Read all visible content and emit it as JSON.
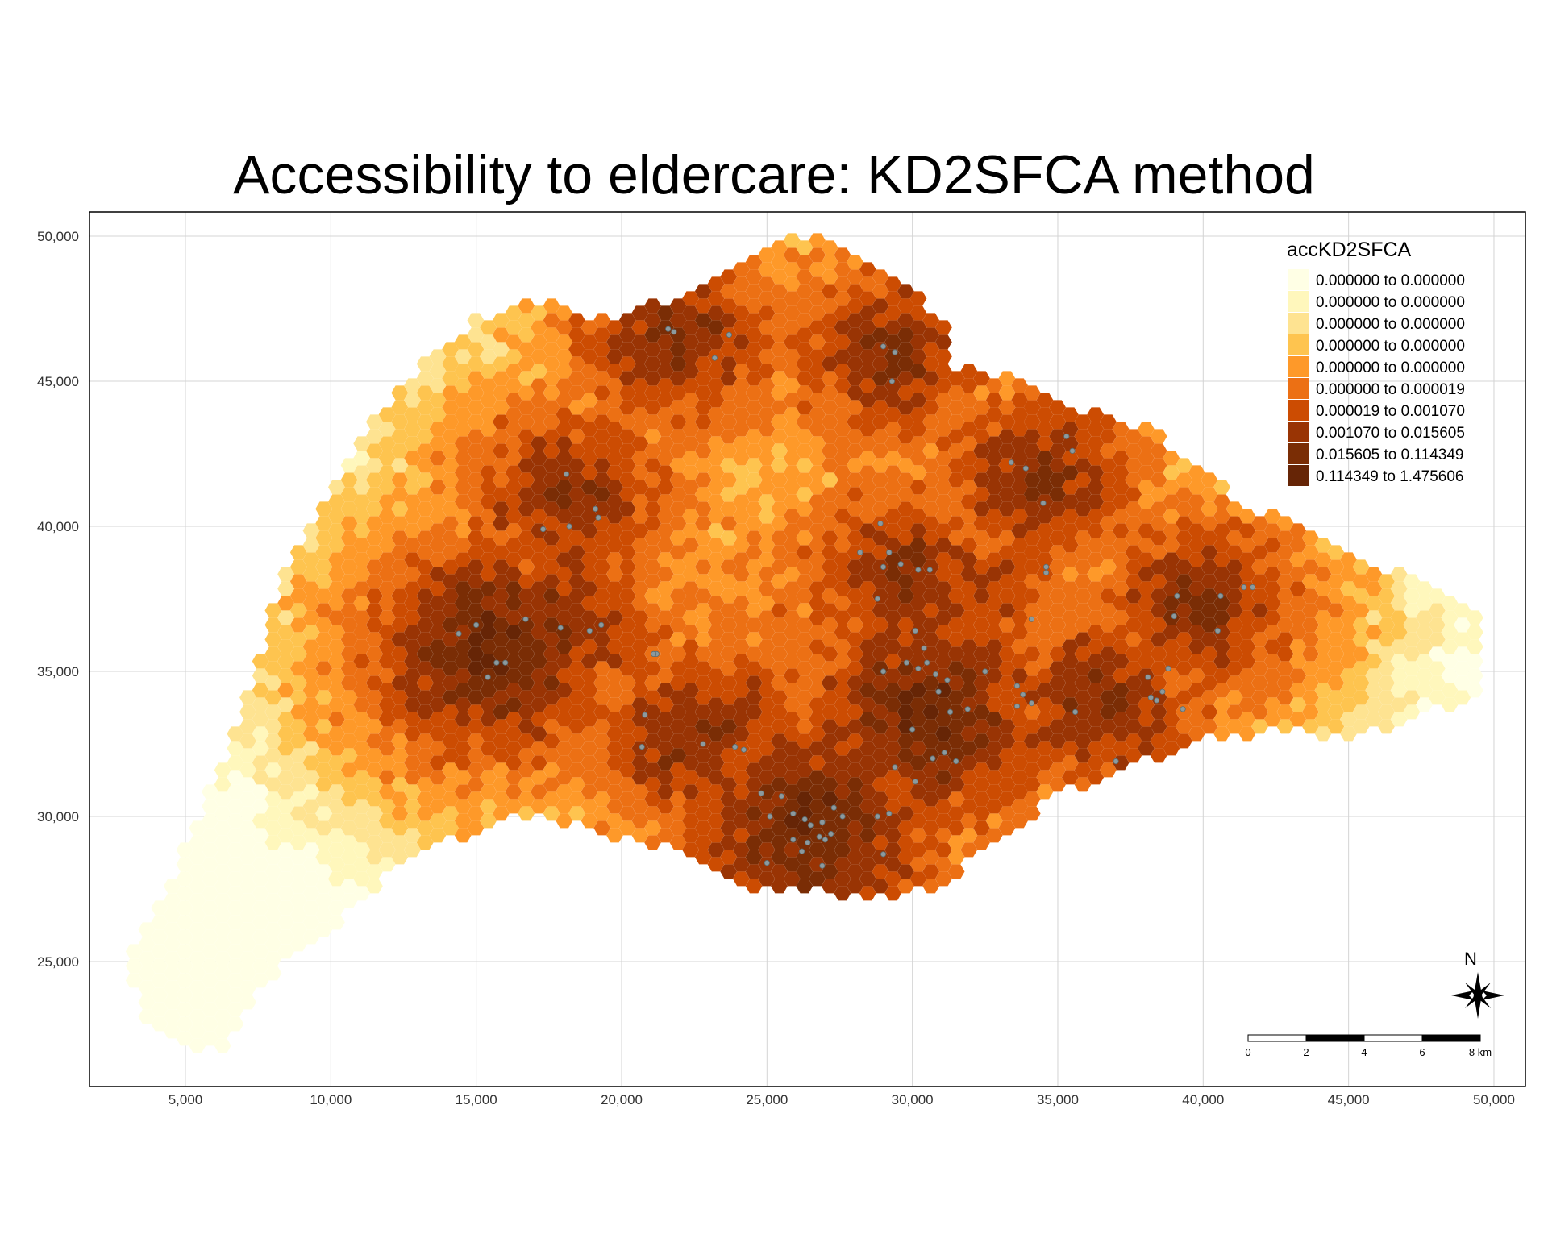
{
  "title": "Accessibility to eldercare: KD2SFCA method",
  "chart_data": {
    "type": "heatmap",
    "map_type": "hexagon choropleth",
    "variable": "accKD2SFCA",
    "xlim": [
      2000,
      51000
    ],
    "ylim": [
      21000,
      51000
    ],
    "grid": true,
    "x_ticks": [
      5000,
      10000,
      15000,
      20000,
      25000,
      30000,
      35000,
      40000,
      45000,
      50000
    ],
    "y_ticks": [
      25000,
      30000,
      35000,
      40000,
      45000,
      50000
    ],
    "x_tick_labels": [
      "5,000",
      "10,000",
      "15,000",
      "20,000",
      "25,000",
      "30,000",
      "35,000",
      "40,000",
      "45,000",
      "50,000"
    ],
    "y_tick_labels": [
      "25,000",
      "30,000",
      "35,000",
      "40,000",
      "45,000",
      "50,000"
    ],
    "legend": {
      "title": "accKD2SFCA",
      "placement": "top-right",
      "classes": [
        {
          "label": "0.000000 to 0.000000",
          "color": "#ffffe5"
        },
        {
          "label": "0.000000 to 0.000000",
          "color": "#fff7bc"
        },
        {
          "label": "0.000000 to 0.000000",
          "color": "#fee391"
        },
        {
          "label": "0.000000 to 0.000000",
          "color": "#fec44f"
        },
        {
          "label": "0.000000 to 0.000000",
          "color": "#fe9929"
        },
        {
          "label": "0.000000 to 0.000019",
          "color": "#ec7014"
        },
        {
          "label": "0.000019 to 0.001070",
          "color": "#cc4c02"
        },
        {
          "label": "0.001070 to 0.015605",
          "color": "#993404"
        },
        {
          "label": "0.015605 to 0.114349",
          "color": "#7a2d05"
        },
        {
          "label": "0.114349 to 1.475606",
          "color": "#662506"
        }
      ]
    },
    "hotspots": [
      {
        "x": 22000,
        "y": 46500,
        "cls": 8
      },
      {
        "x": 29300,
        "y": 46000,
        "cls": 8
      },
      {
        "x": 18200,
        "y": 41000,
        "cls": 8
      },
      {
        "x": 15500,
        "y": 35800,
        "cls": 9
      },
      {
        "x": 17500,
        "y": 36700,
        "cls": 8
      },
      {
        "x": 29700,
        "y": 38200,
        "cls": 8
      },
      {
        "x": 30600,
        "y": 33500,
        "cls": 9
      },
      {
        "x": 26500,
        "y": 29700,
        "cls": 9
      },
      {
        "x": 34300,
        "y": 41700,
        "cls": 8
      },
      {
        "x": 39800,
        "y": 37200,
        "cls": 8
      },
      {
        "x": 36500,
        "y": 34000,
        "cls": 8
      },
      {
        "x": 22500,
        "y": 32700,
        "cls": 8
      },
      {
        "x": 19500,
        "y": 36000,
        "cls": 7
      },
      {
        "x": 24000,
        "y": 33500,
        "cls": 7
      },
      {
        "x": 32500,
        "y": 38000,
        "cls": 7
      }
    ],
    "facilities": [
      [
        21600,
        46800
      ],
      [
        21800,
        46700
      ],
      [
        23200,
        45800
      ],
      [
        23700,
        46600
      ],
      [
        29000,
        46200
      ],
      [
        29400,
        46000
      ],
      [
        29300,
        45000
      ],
      [
        18100,
        41800
      ],
      [
        18200,
        40000
      ],
      [
        19200,
        40300
      ],
      [
        19100,
        40600
      ],
      [
        17300,
        39900
      ],
      [
        14400,
        36300
      ],
      [
        15000,
        36600
      ],
      [
        15700,
        35300
      ],
      [
        16000,
        35300
      ],
      [
        15400,
        34800
      ],
      [
        16700,
        36800
      ],
      [
        17900,
        36500
      ],
      [
        18900,
        36400
      ],
      [
        19300,
        36600
      ],
      [
        21200,
        35600
      ],
      [
        28900,
        40100
      ],
      [
        29200,
        39100
      ],
      [
        28200,
        39100
      ],
      [
        29000,
        38600
      ],
      [
        29600,
        38700
      ],
      [
        30200,
        38500
      ],
      [
        30600,
        38500
      ],
      [
        28800,
        37500
      ],
      [
        30100,
        36400
      ],
      [
        30400,
        35800
      ],
      [
        30500,
        35300
      ],
      [
        29800,
        35300
      ],
      [
        30200,
        35100
      ],
      [
        30800,
        34900
      ],
      [
        31200,
        34700
      ],
      [
        29000,
        35000
      ],
      [
        30900,
        34300
      ],
      [
        31300,
        33600
      ],
      [
        31900,
        33700
      ],
      [
        32500,
        35000
      ],
      [
        30000,
        33000
      ],
      [
        30700,
        32000
      ],
      [
        31100,
        32200
      ],
      [
        29400,
        31700
      ],
      [
        30100,
        31200
      ],
      [
        31500,
        31900
      ],
      [
        24800,
        30800
      ],
      [
        25500,
        30700
      ],
      [
        25100,
        30000
      ],
      [
        25900,
        30100
      ],
      [
        26300,
        29900
      ],
      [
        26500,
        29700
      ],
      [
        26900,
        29800
      ],
      [
        27300,
        30300
      ],
      [
        27600,
        30000
      ],
      [
        28800,
        30000
      ],
      [
        29200,
        30100
      ],
      [
        26400,
        29100
      ],
      [
        26800,
        29300
      ],
      [
        27000,
        29200
      ],
      [
        27200,
        29400
      ],
      [
        25900,
        29200
      ],
      [
        26200,
        28800
      ],
      [
        25000,
        28400
      ],
      [
        29000,
        28700
      ],
      [
        26900,
        28300
      ],
      [
        20800,
        33500
      ],
      [
        20700,
        32400
      ],
      [
        22800,
        32500
      ],
      [
        23900,
        32400
      ],
      [
        24200,
        32300
      ],
      [
        21100,
        35600
      ],
      [
        33400,
        42200
      ],
      [
        33900,
        42000
      ],
      [
        35300,
        43100
      ],
      [
        35500,
        42600
      ],
      [
        34500,
        40800
      ],
      [
        34600,
        38600
      ],
      [
        34600,
        38400
      ],
      [
        34100,
        36800
      ],
      [
        33600,
        34500
      ],
      [
        33800,
        34200
      ],
      [
        33600,
        33800
      ],
      [
        34100,
        33900
      ],
      [
        35600,
        33600
      ],
      [
        37000,
        31900
      ],
      [
        38200,
        34100
      ],
      [
        38400,
        34000
      ],
      [
        38600,
        34300
      ],
      [
        39300,
        33700
      ],
      [
        38800,
        35100
      ],
      [
        38100,
        34800
      ],
      [
        39100,
        37600
      ],
      [
        40600,
        37600
      ],
      [
        41400,
        37900
      ],
      [
        41700,
        37900
      ],
      [
        39000,
        36900
      ],
      [
        40500,
        36400
      ]
    ]
  },
  "scale_bar": {
    "labels": [
      "0",
      "2",
      "4",
      "6",
      "8 km"
    ]
  },
  "north_arrow": {
    "label": "N"
  }
}
